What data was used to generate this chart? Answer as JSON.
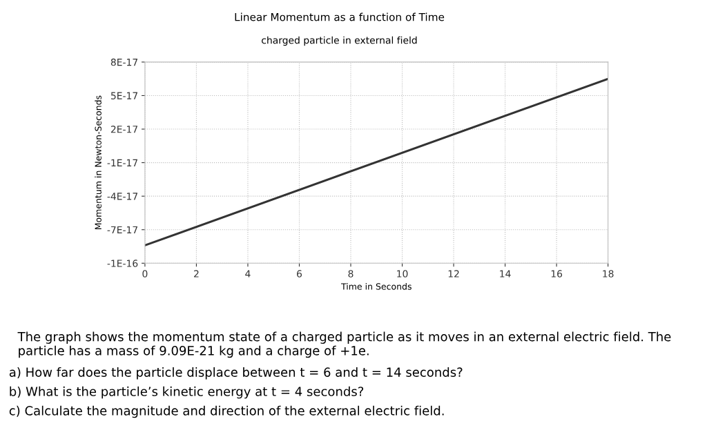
{
  "chart_data": {
    "type": "line",
    "title": "Linear Momentum as a function of Time",
    "subtitle": "charged particle in external field",
    "xlabel": "Time in Seconds",
    "ylabel": "Momentum in Newton-Seconds",
    "x": [
      0,
      18
    ],
    "series": [
      {
        "color": "#333333",
        "values": [
          -8.4e-17,
          6.5e-17
        ]
      }
    ],
    "xlim": [
      0,
      18
    ],
    "xticks": [
      0,
      2,
      4,
      6,
      8,
      10,
      12,
      14,
      16,
      18
    ],
    "ylim": [
      -1e-16,
      8e-17
    ],
    "yticks": [
      {
        "value": -1e-16,
        "label": "-1E-16"
      },
      {
        "value": -7e-17,
        "label": "-7E-17"
      },
      {
        "value": -4e-17,
        "label": "-4E-17"
      },
      {
        "value": -1e-17,
        "label": "-1E-17"
      },
      {
        "value": 2e-17,
        "label": "2E-17"
      },
      {
        "value": 5e-17,
        "label": "5E-17"
      },
      {
        "value": 8e-17,
        "label": "8E-17"
      }
    ],
    "grid": true,
    "line_style": "solid",
    "marker": "none",
    "legend": false,
    "annotations": [
      "The graph shows the momentum state of a charged particle as it moves in an external electric field. The particle has a mass of 9.09E-21 kg and a charge of +1e.",
      "a) How far does the particle displace between t = 6 and t = 14 seconds?",
      "b) What is the particle’s kinetic energy at t = 4 seconds?",
      "c) Calculate the magnitude and direction of the external electric field."
    ]
  }
}
